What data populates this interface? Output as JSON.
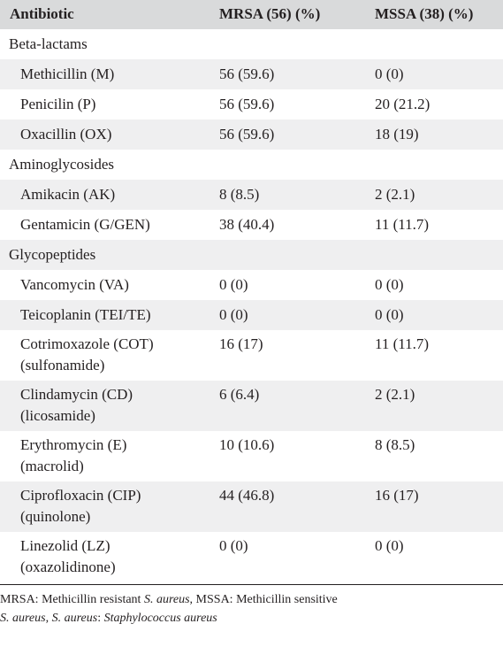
{
  "table": {
    "headers": [
      "Antibiotic",
      "MRSA (56) (%)",
      "MSSA (38) (%)"
    ],
    "rows": [
      {
        "type": "group",
        "label": "Beta-lactams"
      },
      {
        "type": "drug",
        "name": "Methicillin (M)",
        "mrsa": "56 (59.6)",
        "mssa": "0 (0)"
      },
      {
        "type": "drug",
        "name": "Penicilin (P)",
        "mrsa": "56 (59.6)",
        "mssa": "20 (21.2)"
      },
      {
        "type": "drug",
        "name": "Oxacillin (OX)",
        "mrsa": "56 (59.6)",
        "mssa": "18 (19)"
      },
      {
        "type": "group",
        "label": "Aminoglycosides"
      },
      {
        "type": "drug",
        "name": "Amikacin (AK)",
        "mrsa": "8 (8.5)",
        "mssa": "2 (2.1)"
      },
      {
        "type": "drug",
        "name": "Gentamicin (G/GEN)",
        "mrsa": "38 (40.4)",
        "mssa": "11 (11.7)"
      },
      {
        "type": "group",
        "label": "Glycopeptides"
      },
      {
        "type": "drug",
        "name": "Vancomycin (VA)",
        "mrsa": "0 (0)",
        "mssa": "0 (0)"
      },
      {
        "type": "drug",
        "name": "Teicoplanin (TEI/TE)",
        "mrsa": "0 (0)",
        "mssa": "0 (0)"
      },
      {
        "type": "drug",
        "name": "Cotrimoxazole (COT)",
        "subclass": "(sulfonamide)",
        "mrsa": "16 (17)",
        "mssa": "11 (11.7)"
      },
      {
        "type": "drug",
        "name": "Clindamycin (CD)",
        "subclass": "(licosamide)",
        "mrsa": "6 (6.4)",
        "mssa": "2 (2.1)"
      },
      {
        "type": "drug",
        "name": "Erythromycin (E)",
        "subclass": "(macrolid)",
        "mrsa": "10 (10.6)",
        "mssa": "8 (8.5)"
      },
      {
        "type": "drug",
        "name": "Ciprofloxacin (CIP)",
        "subclass": "(quinolone)",
        "mrsa": "44 (46.8)",
        "mssa": "16 (17)"
      },
      {
        "type": "drug",
        "name": "Linezolid (LZ)",
        "subclass": "(oxazolidinone)",
        "mrsa": "0 (0)",
        "mssa": "0 (0)"
      }
    ]
  },
  "footnote": {
    "line1_text": "MRSA: Methicillin resistant ",
    "line1_italic": "S. aureus",
    "line1_text2": ", MSSA: Methicillin sensitive",
    "line2_italic1": "S. aureus",
    "line2_text": ", ",
    "line2_italic2": "S. aureus",
    "line2_text2": ": ",
    "line2_italic3": "Staphylococcus aureus"
  }
}
